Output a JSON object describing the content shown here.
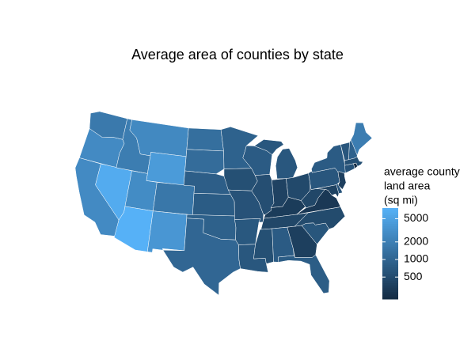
{
  "chart_data": {
    "type": "choropleth",
    "title": "Average area of counties by state",
    "values": [
      1700,
      2700,
      2700,
      6500,
      1900,
      2600,
      4200,
      2800,
      7600,
      1600,
      3700,
      1300,
      1200,
      830,
      780,
      890,
      1030,
      910,
      560,
      600,
      700,
      680,
      760,
      540,
      680,
      390,
      470,
      330,
      440,
      560,
      760,
      360,
      800,
      660,
      490,
      300,
      440,
      670,
      400,
      650,
      360,
      760,
      620,
      210,
      560,
      670,
      900,
      1900
    ],
    "colors": {
      "low": "#132B43",
      "high": "#56B1F7"
    },
    "log_scale": true,
    "legend_title": [
      "average county",
      "land area",
      "(sq mi)"
    ],
    "legend_ticks": [
      500,
      1000,
      2000,
      5000
    ]
  }
}
